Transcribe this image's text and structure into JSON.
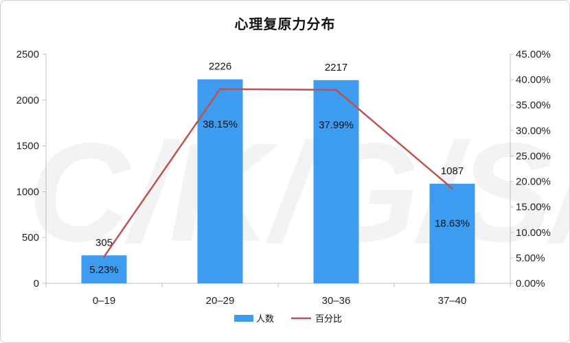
{
  "watermark": "C/K/G/S/B",
  "chart_data": {
    "type": "bar",
    "title": "心理复原力分布",
    "categories": [
      "0–19",
      "20–29",
      "30–36",
      "37–40"
    ],
    "series": [
      {
        "name": "人数",
        "type": "bar",
        "axis": "left",
        "values": [
          305,
          2226,
          2217,
          1087
        ],
        "labels": [
          "305",
          "2226",
          "2217",
          "1087"
        ]
      },
      {
        "name": "百分比",
        "type": "line",
        "axis": "right",
        "values": [
          5.23,
          38.15,
          37.99,
          18.63
        ],
        "labels": [
          "5.23%",
          "38.15%",
          "37.99%",
          "18.63%"
        ]
      }
    ],
    "y_left": {
      "range": [
        0,
        2500
      ],
      "ticks": [
        "0",
        "500",
        "1000",
        "1500",
        "2000",
        "2500"
      ]
    },
    "y_right": {
      "range": [
        0,
        45
      ],
      "ticks": [
        "0.00%",
        "5.00%",
        "10.00%",
        "15.00%",
        "20.00%",
        "25.00%",
        "30.00%",
        "35.00%",
        "40.00%",
        "45.00%"
      ]
    },
    "grid": false,
    "legend": "bottom",
    "colors": {
      "bar": "#3d9bf0",
      "line": "#c0504d",
      "axis": "#bfbfbf"
    }
  }
}
